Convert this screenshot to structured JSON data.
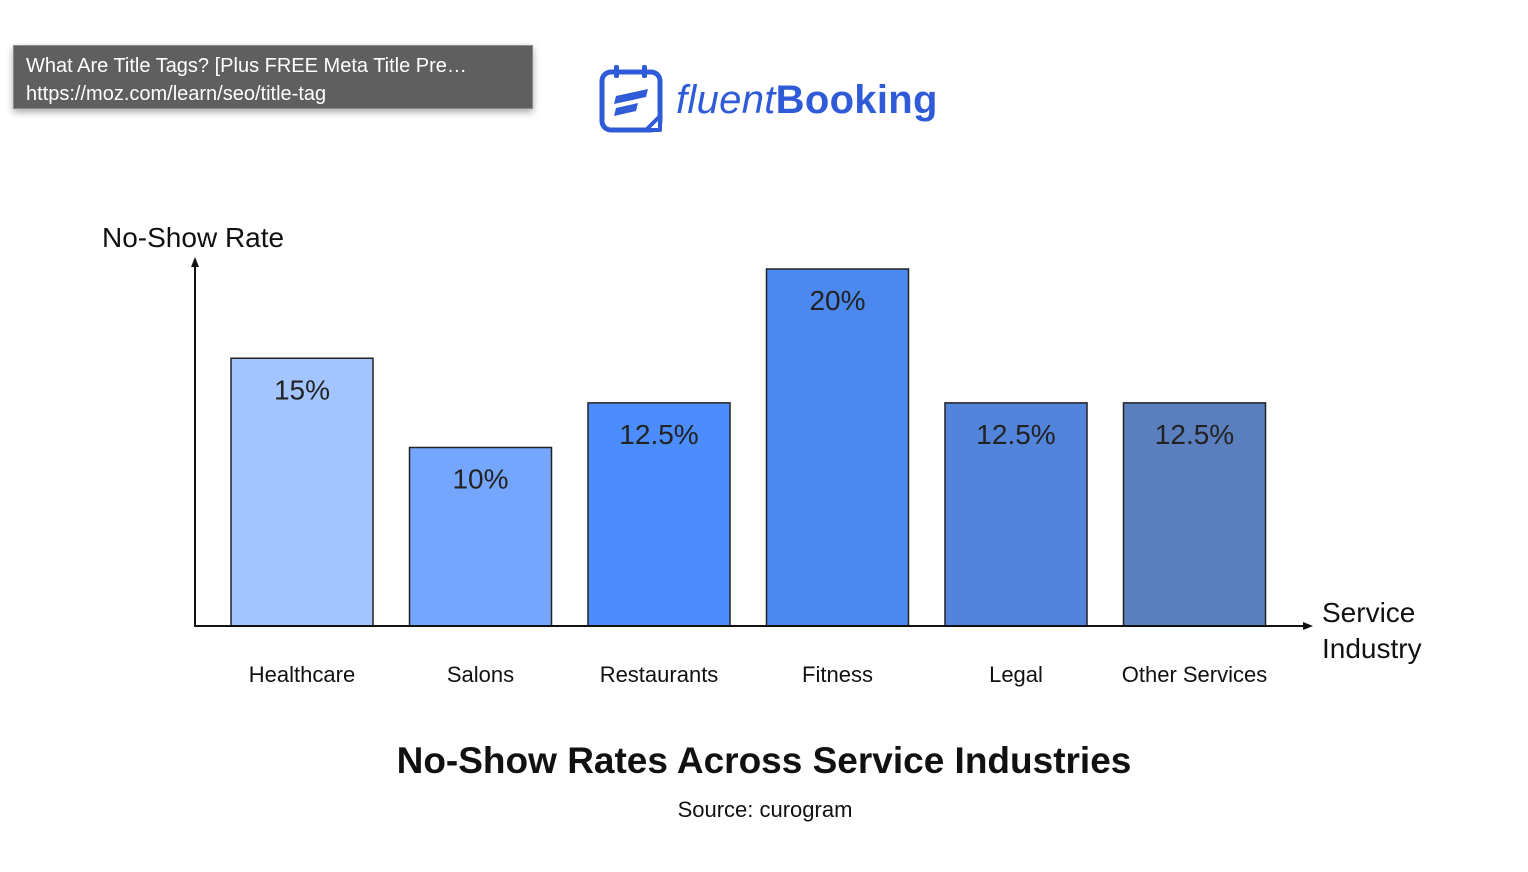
{
  "tooltip": {
    "title": "What Are Title Tags? [Plus FREE Meta Title Pre…",
    "url": "https://moz.com/learn/seo/title-tag"
  },
  "logo": {
    "text_light": "fluent",
    "text_bold": "Booking",
    "icon": "calendar-icon",
    "brand_color": "#2f5bd8"
  },
  "chart_data": {
    "type": "bar",
    "title": "No-Show Rates Across Service Industries",
    "source": "Source: curogram",
    "ylabel": "No-Show Rate",
    "xlabel_lines": [
      "Service",
      "Industry"
    ],
    "categories": [
      "Healthcare",
      "Salons",
      "Restaurants",
      "Fitness",
      "Legal",
      "Other Services"
    ],
    "values": [
      15,
      10,
      12.5,
      20,
      12.5,
      12.5
    ],
    "value_labels": [
      "15%",
      "10%",
      "12.5%",
      "20%",
      "12.5%",
      "12.5%"
    ],
    "colors": [
      "#a3c5ff",
      "#74a6fe",
      "#4c8dfd",
      "#4c89ee",
      "#5384db",
      "#5a7fbe"
    ],
    "ylim": [
      0,
      20
    ],
    "grid": false,
    "legend": "none"
  }
}
